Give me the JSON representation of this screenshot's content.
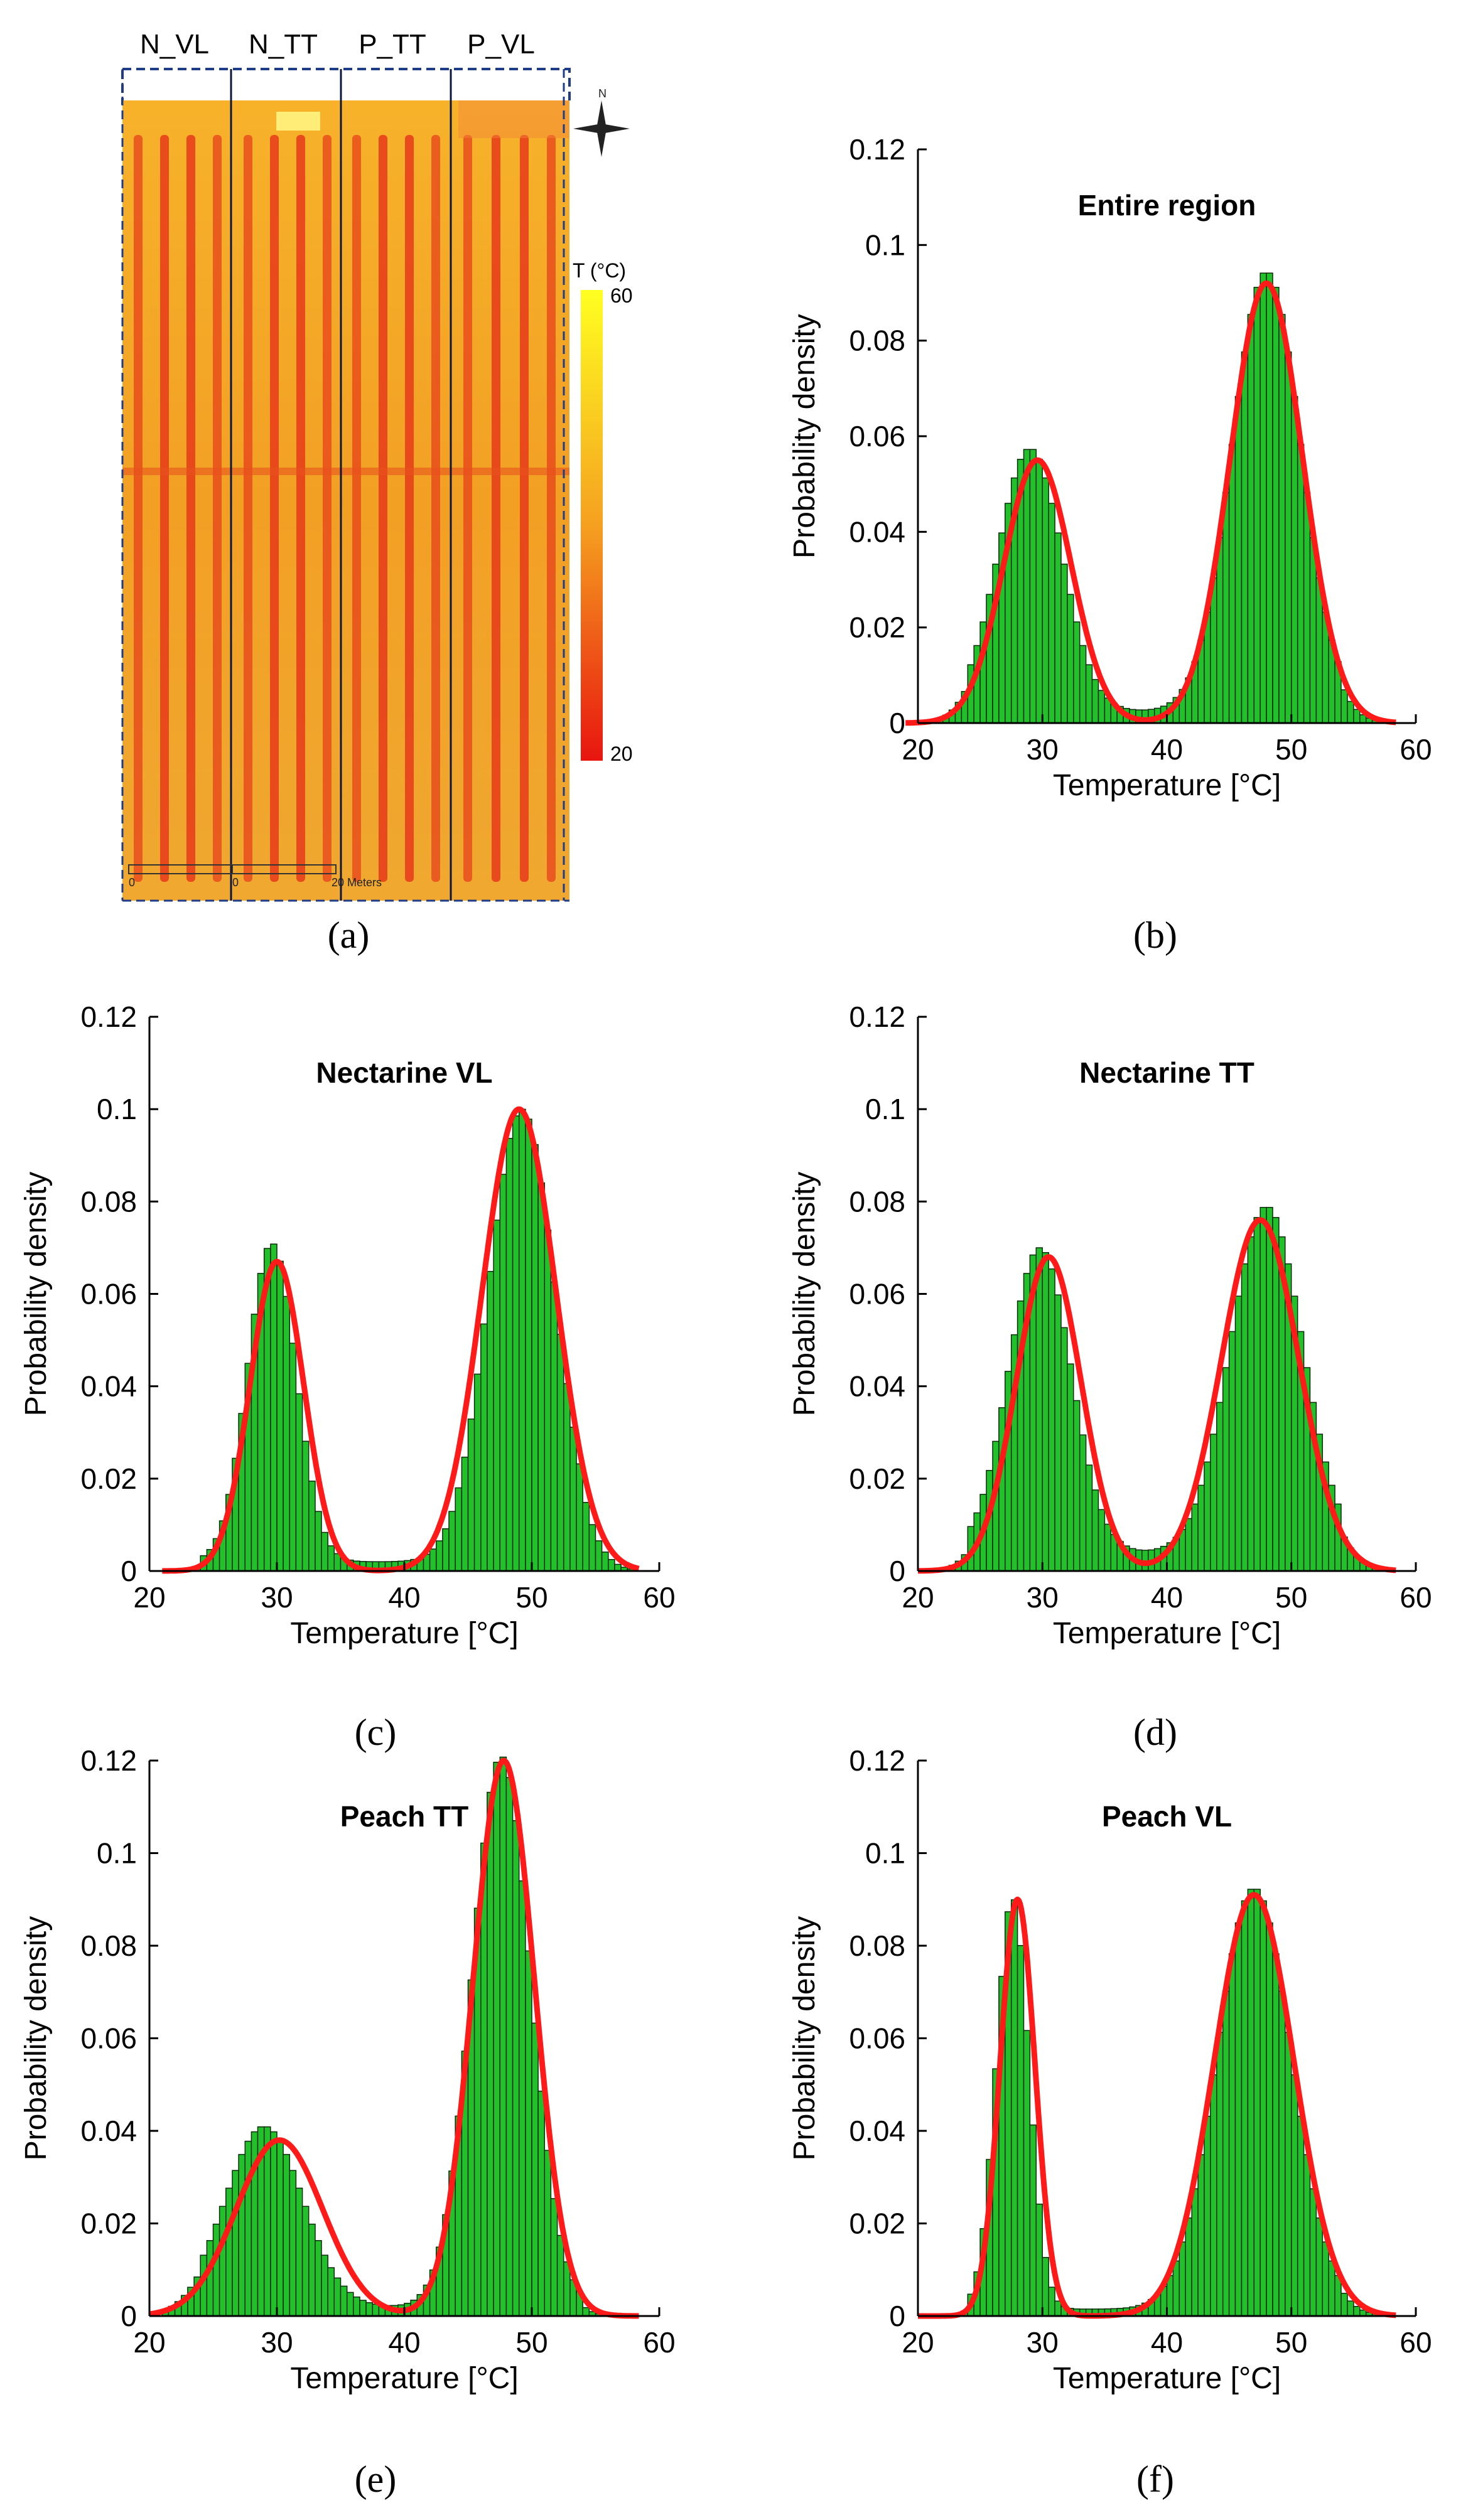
{
  "panel_labels": [
    "(a)",
    "(b)",
    "(c)",
    "(d)",
    "(e)",
    "(f)"
  ],
  "thermal_map": {
    "zones": [
      "N_VL",
      "N_TT",
      "P_TT",
      "P_VL"
    ],
    "colorbar_label": "T (°C)",
    "colorbar_max": "60",
    "colorbar_min": "20",
    "compass_label": "N",
    "scale_label": "20 Meters",
    "scale_start": "0",
    "scale_mid": "0",
    "colors": {
      "hot": "#FFFF20",
      "warm": "#F5A623",
      "cool": "#E8231A"
    }
  },
  "chart_data": [
    {
      "id": "b",
      "type": "bar",
      "title": "Entire region",
      "xlabel": "Temperature [°C]",
      "ylabel": "Probability density",
      "xlim": [
        20,
        60
      ],
      "ylim": [
        0,
        0.12
      ],
      "xticks": [
        "20",
        "30",
        "40",
        "50",
        "60"
      ],
      "yticks": [
        "0",
        "0.02",
        "0.04",
        "0.06",
        "0.08",
        "0.1",
        "0.12"
      ],
      "hist_range": [
        20,
        58
      ],
      "series": [
        {
          "name": "histogram",
          "kind": "bar",
          "color": "#22C02A",
          "mixture": [
            {
              "mu": 29.0,
              "sd": 2.55,
              "peak": 0.055
            },
            {
              "mu": 48.0,
              "sd": 2.75,
              "peak": 0.092
            }
          ],
          "baseline": 0.0025
        },
        {
          "name": "fit",
          "kind": "line",
          "color": "#FF1A1A",
          "mixture": [
            {
              "mu": 29.6,
              "sd": 2.7,
              "peak": 0.055
            },
            {
              "mu": 48.0,
              "sd": 2.9,
              "peak": 0.092
            }
          ]
        }
      ]
    },
    {
      "id": "c",
      "type": "bar",
      "title": "Nectarine VL",
      "xlabel": "Temperature [°C]",
      "ylabel": "Probability density",
      "xlim": [
        20,
        60
      ],
      "ylim": [
        0,
        0.12
      ],
      "xticks": [
        "20",
        "30",
        "40",
        "50",
        "60"
      ],
      "yticks": [
        "0",
        "0.02",
        "0.04",
        "0.06",
        "0.08",
        "0.1",
        "0.12"
      ],
      "hist_range": [
        22,
        58
      ],
      "series": [
        {
          "name": "histogram",
          "kind": "bar",
          "color": "#22C02A",
          "mixture": [
            {
              "mu": 29.6,
              "sd": 1.9,
              "peak": 0.069
            },
            {
              "mu": 49.2,
              "sd": 2.6,
              "peak": 0.098
            }
          ],
          "baseline": 0.002
        },
        {
          "name": "fit",
          "kind": "line",
          "color": "#FF1A1A",
          "mixture": [
            {
              "mu": 30.0,
              "sd": 2.1,
              "peak": 0.067
            },
            {
              "mu": 49.0,
              "sd": 2.9,
              "peak": 0.1
            }
          ]
        }
      ]
    },
    {
      "id": "d",
      "type": "bar",
      "title": "Nectarine TT",
      "xlabel": "Temperature [°C]",
      "ylabel": "Probability density",
      "xlim": [
        20,
        60
      ],
      "ylim": [
        0,
        0.12
      ],
      "xticks": [
        "20",
        "30",
        "40",
        "50",
        "60"
      ],
      "yticks": [
        "0",
        "0.02",
        "0.04",
        "0.06",
        "0.08",
        "0.1",
        "0.12"
      ],
      "hist_range": [
        21,
        58
      ],
      "series": [
        {
          "name": "histogram",
          "kind": "bar",
          "color": "#22C02A",
          "mixture": [
            {
              "mu": 29.8,
              "sd": 2.5,
              "peak": 0.066
            },
            {
              "mu": 48.0,
              "sd": 2.9,
              "peak": 0.075
            }
          ],
          "baseline": 0.004
        },
        {
          "name": "fit",
          "kind": "line",
          "color": "#FF1A1A",
          "mixture": [
            {
              "mu": 30.5,
              "sd": 2.6,
              "peak": 0.068
            },
            {
              "mu": 47.5,
              "sd": 3.1,
              "peak": 0.076
            }
          ]
        }
      ]
    },
    {
      "id": "e",
      "type": "bar",
      "title": "Peach TT",
      "xlabel": "Temperature [°C]",
      "ylabel": "Probability density",
      "xlim": [
        20,
        60
      ],
      "ylim": [
        0,
        0.12
      ],
      "xticks": [
        "20",
        "30",
        "40",
        "50",
        "60"
      ],
      "yticks": [
        "0",
        "0.02",
        "0.04",
        "0.06",
        "0.08",
        "0.1",
        "0.12"
      ],
      "hist_range": [
        21,
        58
      ],
      "series": [
        {
          "name": "histogram",
          "kind": "bar",
          "color": "#22C02A",
          "mixture": [
            {
              "mu": 29.0,
              "sd": 3.0,
              "peak": 0.039
            },
            {
              "mu": 47.6,
              "sd": 2.3,
              "peak": 0.119
            }
          ],
          "baseline": 0.002
        },
        {
          "name": "fit",
          "kind": "line",
          "color": "#FF1A1A",
          "mixture": [
            {
              "mu": 30.2,
              "sd": 3.4,
              "peak": 0.038
            },
            {
              "mu": 47.8,
              "sd": 2.4,
              "peak": 0.12
            }
          ]
        }
      ]
    },
    {
      "id": "f",
      "type": "bar",
      "title": "Peach VL",
      "xlabel": "Temperature [°C]",
      "ylabel": "Probability density",
      "xlim": [
        20,
        60
      ],
      "ylim": [
        0,
        0.12
      ],
      "xticks": [
        "20",
        "30",
        "40",
        "50",
        "60"
      ],
      "yticks": [
        "0",
        "0.02",
        "0.04",
        "0.06",
        "0.08",
        "0.1",
        "0.12"
      ],
      "hist_range": [
        21,
        58
      ],
      "series": [
        {
          "name": "histogram",
          "kind": "bar",
          "color": "#22C02A",
          "mixture": [
            {
              "mu": 27.6,
              "sd": 1.3,
              "peak": 0.089
            },
            {
              "mu": 47.0,
              "sd": 3.0,
              "peak": 0.091
            }
          ],
          "baseline": 0.0015
        },
        {
          "name": "fit",
          "kind": "line",
          "color": "#FF1A1A",
          "mixture": [
            {
              "mu": 28.0,
              "sd": 1.4,
              "peak": 0.09
            },
            {
              "mu": 47.0,
              "sd": 3.2,
              "peak": 0.091
            }
          ]
        }
      ]
    }
  ]
}
